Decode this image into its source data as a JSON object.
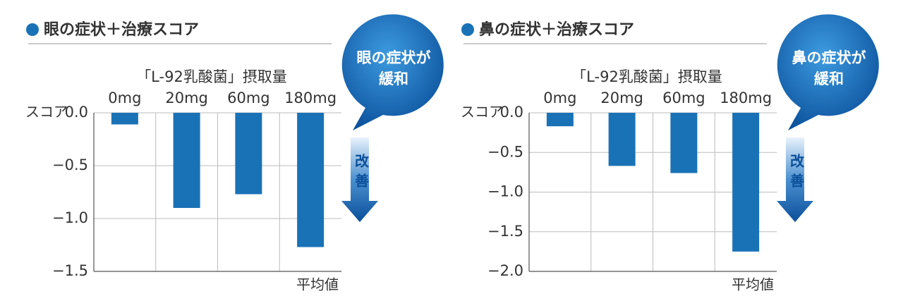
{
  "chart_data": [
    {
      "type": "bar",
      "title": "眼の症状＋治療スコア",
      "subtitle": "「L-92乳酸菌」摂取量",
      "categories": [
        "0mg",
        "20mg",
        "60mg",
        "180mg"
      ],
      "values": [
        -0.11,
        -0.9,
        -0.77,
        -1.27
      ],
      "color": "#1a72b6",
      "y_label": "スコア",
      "x_label": "平均値",
      "ylim": [
        -1.5,
        0
      ],
      "yticks": [
        {
          "value": 0,
          "label": "0.0"
        },
        {
          "value": -0.5,
          "label": "−0.5"
        },
        {
          "value": -1,
          "label": "−1.0"
        },
        {
          "value": -1.5,
          "label": "−1.5"
        }
      ],
      "grid": true,
      "callout": [
        "眼の症状が",
        "緩和"
      ],
      "arrow_label": "改善"
    },
    {
      "type": "bar",
      "title": "鼻の症状＋治療スコア",
      "subtitle": "「L-92乳酸菌」摂取量",
      "categories": [
        "0mg",
        "20mg",
        "60mg",
        "180mg"
      ],
      "values": [
        -0.17,
        -0.67,
        -0.76,
        -1.75
      ],
      "color": "#1a72b6",
      "y_label": "スコア",
      "x_label": "平均値",
      "ylim": [
        -2,
        0
      ],
      "yticks": [
        {
          "value": 0,
          "label": "0.0"
        },
        {
          "value": -0.5,
          "label": "−0.5"
        },
        {
          "value": -1,
          "label": "−1.0"
        },
        {
          "value": -1.5,
          "label": "−1.5"
        },
        {
          "value": -2,
          "label": "−2.0"
        }
      ],
      "grid": true,
      "callout": [
        "鼻の症状が",
        "緩和"
      ],
      "arrow_label": "改善"
    }
  ]
}
